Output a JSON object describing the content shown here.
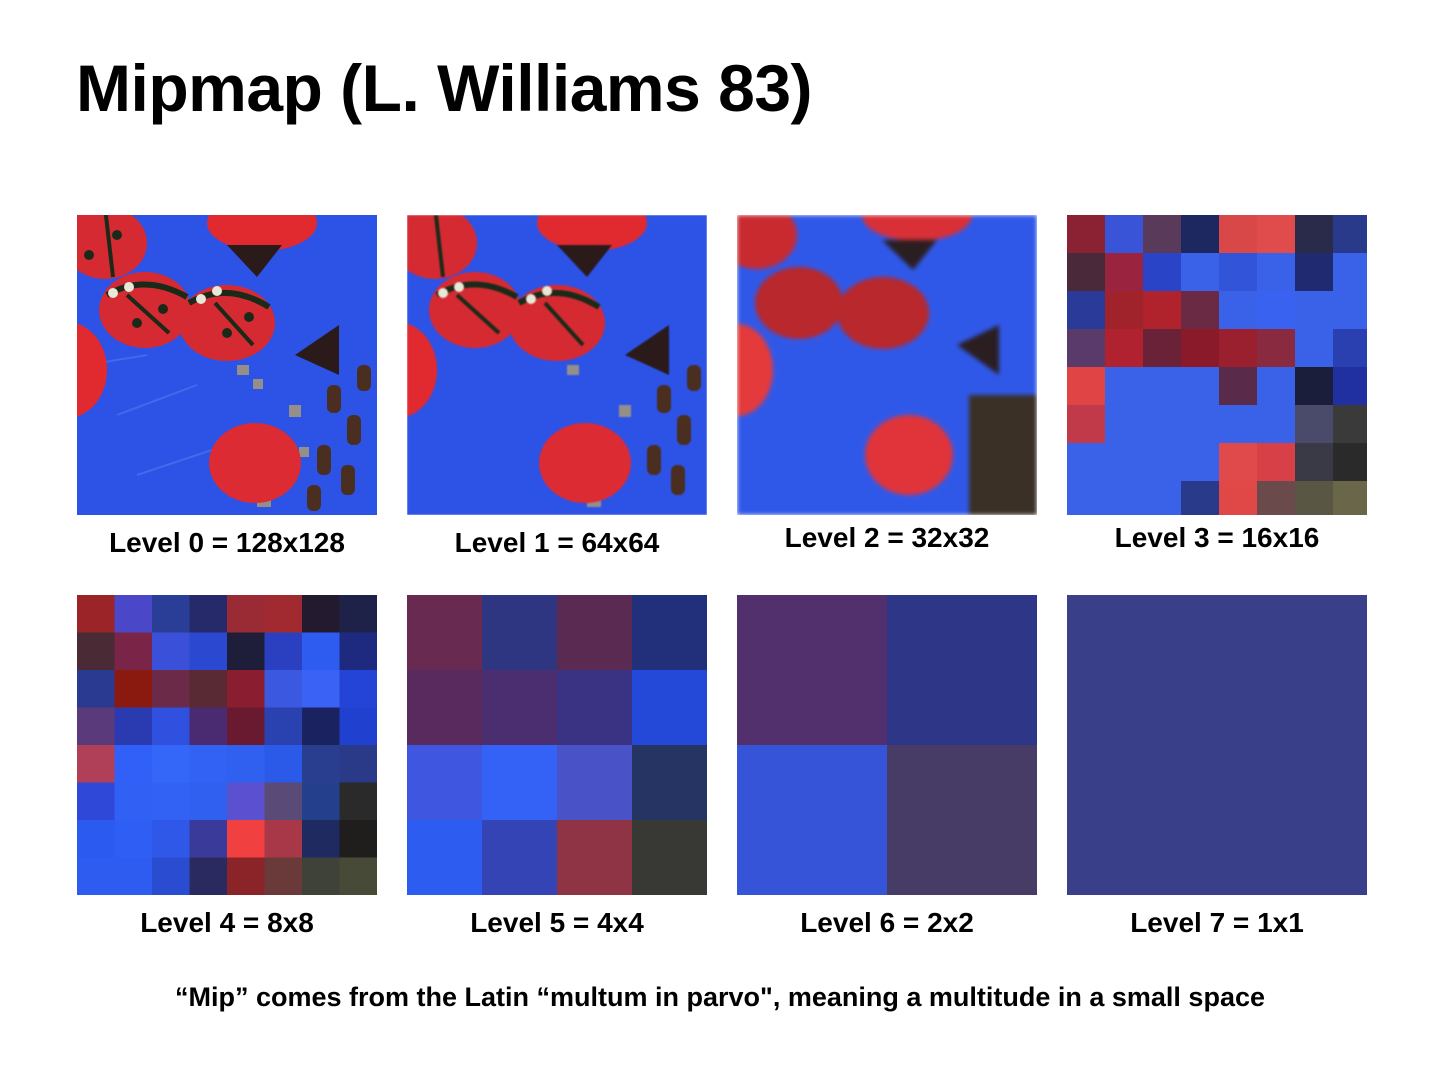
{
  "slide": {
    "title": "Mipmap (L. Williams 83)",
    "caption": "“Mip” comes from the Latin “multum in parvo\", meaning a multitude in a small space"
  },
  "levels": [
    {
      "label": "Level 0 = 128x128"
    },
    {
      "label": "Level 1 = 64x64"
    },
    {
      "label": "Level 2 = 32x32"
    },
    {
      "label": "Level 3 = 16x16"
    },
    {
      "label": "Level 4 = 8x8"
    },
    {
      "label": "Level 5 = 4x4"
    },
    {
      "label": "Level 6 = 2x2"
    },
    {
      "label": "Level 7 = 1x1"
    }
  ],
  "colors": {
    "background_blue": "#2f55e0",
    "ladybug_red": "#d8283a",
    "level7": "#3a3f8a"
  }
}
